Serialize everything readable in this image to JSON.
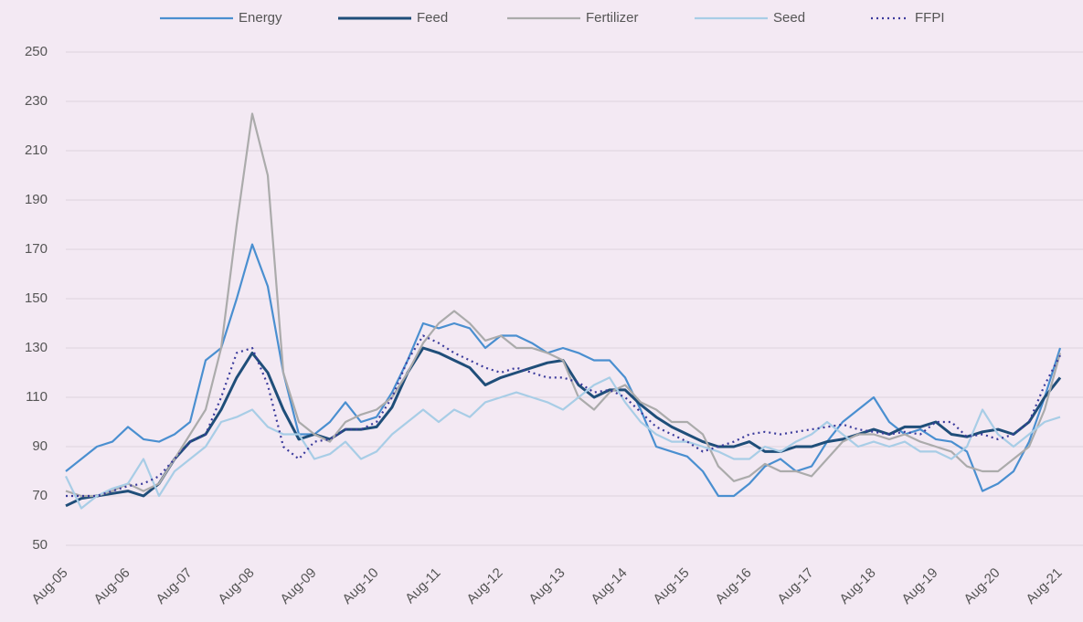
{
  "chart_data": {
    "type": "line",
    "categories": [
      "Aug-05",
      null,
      null,
      null,
      "Aug-06",
      null,
      null,
      null,
      "Aug-07",
      null,
      null,
      null,
      "Aug-08",
      null,
      null,
      null,
      "Aug-09",
      null,
      null,
      null,
      "Aug-10",
      null,
      null,
      null,
      "Aug-11",
      null,
      null,
      null,
      "Aug-12",
      null,
      null,
      null,
      "Aug-13",
      null,
      null,
      null,
      "Aug-14",
      null,
      null,
      null,
      "Aug-15",
      null,
      null,
      null,
      "Aug-16",
      null,
      null,
      null,
      "Aug-17",
      null,
      null,
      null,
      "Aug-18",
      null,
      null,
      null,
      "Aug-19",
      null,
      null,
      null,
      "Aug-20",
      null,
      null,
      null,
      "Aug-21"
    ],
    "series": [
      {
        "name": "Energy",
        "color": "#4a8fd0",
        "values": [
          80,
          85,
          90,
          92,
          98,
          93,
          92,
          95,
          100,
          125,
          130,
          150,
          172,
          155,
          120,
          95,
          95,
          100,
          108,
          100,
          102,
          112,
          125,
          140,
          138,
          140,
          138,
          130,
          135,
          135,
          132,
          128,
          130,
          128,
          125,
          125,
          118,
          105,
          90,
          88,
          86,
          80,
          70,
          70,
          75,
          82,
          85,
          80,
          82,
          92,
          100,
          105,
          110,
          100,
          95,
          97,
          93,
          92,
          88,
          72,
          75,
          80,
          92,
          110,
          130
        ]
      },
      {
        "name": "Feed",
        "color": "#1f4e79",
        "values": [
          66,
          69,
          70,
          71,
          72,
          70,
          75,
          85,
          92,
          95,
          105,
          118,
          128,
          120,
          105,
          93,
          95,
          93,
          97,
          97,
          98,
          106,
          120,
          130,
          128,
          125,
          122,
          115,
          118,
          120,
          122,
          124,
          125,
          115,
          110,
          113,
          113,
          107,
          102,
          98,
          95,
          92,
          90,
          90,
          92,
          88,
          88,
          90,
          90,
          92,
          93,
          95,
          97,
          95,
          98,
          98,
          100,
          95,
          94,
          96,
          97,
          95,
          100,
          110,
          118
        ]
      },
      {
        "name": "Fertilizer",
        "color": "#ababab",
        "values": [
          72,
          70,
          70,
          72,
          75,
          72,
          75,
          85,
          95,
          105,
          130,
          180,
          225,
          200,
          120,
          100,
          95,
          92,
          100,
          103,
          105,
          110,
          120,
          132,
          140,
          145,
          140,
          133,
          135,
          130,
          130,
          128,
          125,
          110,
          105,
          112,
          115,
          108,
          105,
          100,
          100,
          95,
          82,
          76,
          78,
          83,
          80,
          80,
          78,
          85,
          92,
          95,
          95,
          93,
          95,
          92,
          90,
          88,
          82,
          80,
          80,
          85,
          90,
          105,
          128
        ]
      },
      {
        "name": "Seed",
        "color": "#a8cde6",
        "values": [
          78,
          65,
          70,
          73,
          75,
          85,
          70,
          80,
          85,
          90,
          100,
          102,
          105,
          98,
          95,
          95,
          85,
          87,
          92,
          85,
          88,
          95,
          100,
          105,
          100,
          105,
          102,
          108,
          110,
          112,
          110,
          108,
          105,
          110,
          115,
          118,
          108,
          100,
          95,
          92,
          92,
          90,
          88,
          85,
          85,
          90,
          88,
          92,
          95,
          100,
          95,
          90,
          92,
          90,
          92,
          88,
          88,
          85,
          90,
          105,
          95,
          90,
          95,
          100,
          102
        ]
      },
      {
        "name": "FFPI",
        "color": "#3b3b9c",
        "dashed": true,
        "values": [
          70,
          70,
          70,
          72,
          74,
          75,
          78,
          85,
          92,
          95,
          110,
          128,
          130,
          115,
          90,
          85,
          92,
          93,
          97,
          97,
          100,
          110,
          125,
          135,
          132,
          128,
          125,
          122,
          120,
          122,
          120,
          118,
          118,
          116,
          112,
          113,
          110,
          104,
          98,
          95,
          92,
          88,
          90,
          92,
          95,
          96,
          95,
          96,
          97,
          98,
          99,
          97,
          96,
          95,
          96,
          95,
          100,
          100,
          94,
          95,
          93,
          95,
          100,
          115,
          127
        ]
      }
    ],
    "ylim": [
      50,
      250
    ],
    "yticks": [
      50,
      70,
      90,
      110,
      130,
      150,
      170,
      190,
      210,
      230,
      250
    ],
    "grid": true,
    "legend": "top"
  }
}
